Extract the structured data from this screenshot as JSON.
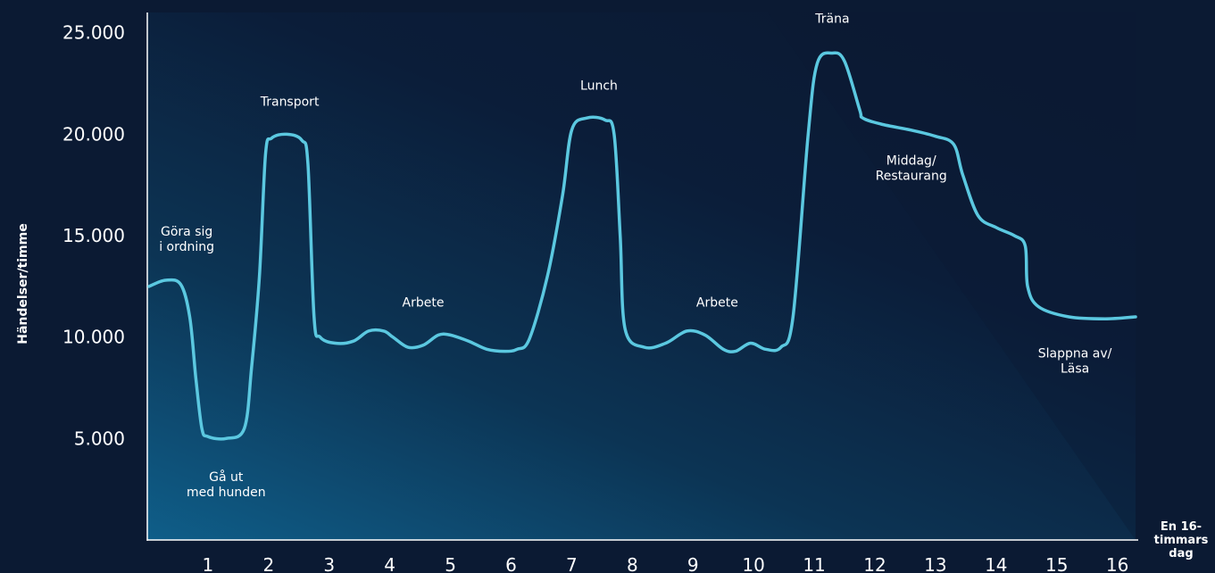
{
  "chart_data": {
    "type": "line",
    "xlabel": [
      "En 16-",
      "timmars",
      "dag"
    ],
    "ylabel": "Händelser/timme",
    "xlim": [
      0,
      16.3
    ],
    "ylim": [
      0,
      26000
    ],
    "x_ticks": [
      1,
      2,
      3,
      4,
      5,
      6,
      7,
      8,
      9,
      10,
      11,
      12,
      13,
      14,
      15,
      16
    ],
    "y_ticks": [
      {
        "value": 5000,
        "label": "5.000"
      },
      {
        "value": 10000,
        "label": "10.000"
      },
      {
        "value": 15000,
        "label": "15.000"
      },
      {
        "value": 20000,
        "label": "20.000"
      },
      {
        "value": 25000,
        "label": "25.000"
      }
    ],
    "line_color": "#5bc8e0",
    "series": [
      {
        "x": [
          0.03,
          0.3,
          0.55,
          0.7,
          0.8,
          0.9,
          1.0,
          1.3,
          1.6,
          1.72,
          1.85,
          1.95,
          2.05,
          2.3,
          2.55,
          2.65,
          2.75,
          2.85,
          3.1,
          3.4,
          3.65,
          3.9,
          4.05,
          4.3,
          4.55,
          4.8,
          5.0,
          5.3,
          5.6,
          5.9,
          6.1,
          6.3,
          6.6,
          6.85,
          7.0,
          7.25,
          7.55,
          7.7,
          7.8,
          7.88,
          8.2,
          8.55,
          8.9,
          9.2,
          9.5,
          9.7,
          9.95,
          10.2,
          10.45,
          10.65,
          10.9,
          11.05,
          11.3,
          11.5,
          11.75,
          11.8,
          12.1,
          12.6,
          13.0,
          13.3,
          13.45,
          13.7,
          14.0,
          14.3,
          14.48,
          14.52,
          14.7,
          15.2,
          15.8,
          16.3
        ],
        "y": [
          12500,
          12800,
          12600,
          11000,
          8000,
          5500,
          5100,
          5000,
          5500,
          8500,
          13000,
          19000,
          19800,
          20000,
          19700,
          18500,
          11000,
          10000,
          9700,
          9800,
          10300,
          10300,
          10000,
          9500,
          9600,
          10100,
          10100,
          9800,
          9400,
          9300,
          9400,
          9900,
          13000,
          17000,
          20200,
          20800,
          20700,
          20000,
          15000,
          10400,
          9500,
          9700,
          10300,
          10100,
          9400,
          9300,
          9700,
          9400,
          9500,
          11000,
          20000,
          23500,
          24000,
          23600,
          21200,
          20800,
          20500,
          20200,
          19900,
          19500,
          18000,
          16000,
          15400,
          15000,
          14500,
          12500,
          11500,
          11000,
          10900,
          11000
        ]
      }
    ],
    "annotations": [
      {
        "lines": [
          "Göra sig",
          "i ordning"
        ],
        "x": 0.65,
        "y": 15000
      },
      {
        "lines": [
          "Gå ut",
          "med hunden"
        ],
        "x": 1.3,
        "y": 2900
      },
      {
        "lines": [
          "Transport"
        ],
        "x": 2.35,
        "y": 21400
      },
      {
        "lines": [
          "Arbete"
        ],
        "x": 4.55,
        "y": 11500
      },
      {
        "lines": [
          "Lunch"
        ],
        "x": 7.45,
        "y": 22200
      },
      {
        "lines": [
          "Arbete"
        ],
        "x": 9.4,
        "y": 11500
      },
      {
        "lines": [
          "Träna"
        ],
        "x": 11.3,
        "y": 25500
      },
      {
        "lines": [
          "Middag/",
          "Restaurang"
        ],
        "x": 12.6,
        "y": 18500
      },
      {
        "lines": [
          "Slappna av/",
          "Läsa"
        ],
        "x": 15.3,
        "y": 9000
      }
    ]
  }
}
